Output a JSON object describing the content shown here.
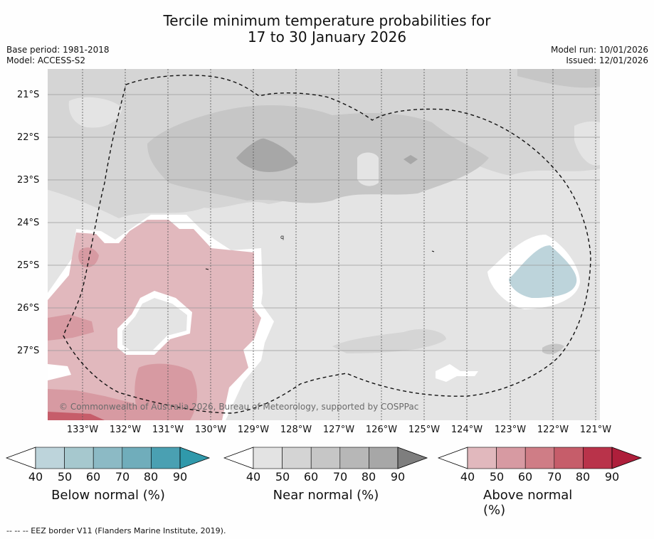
{
  "title": {
    "line1": "Tercile minimum temperature probabilities for",
    "line2": "17 to 30 January 2026"
  },
  "meta": {
    "base_period": "Base period: 1981-2018",
    "model": "Model: ACCESS-S2",
    "model_run": "Model run: 10/01/2026",
    "issued": "Issued: 12/01/2026"
  },
  "map": {
    "latitude_labels": [
      "21°S",
      "22°S",
      "23°S",
      "24°S",
      "25°S",
      "26°S",
      "27°S"
    ],
    "longitude_labels": [
      "133°W",
      "132°W",
      "131°W",
      "130°W",
      "129°W",
      "128°W",
      "127°W",
      "126°W",
      "125°W",
      "124°W",
      "123°W",
      "122°W",
      "121°W"
    ],
    "copyright": "© Commonwealth of Australia 2026, Bureau of Meteorology, supported by COSPPac",
    "small_label": "q"
  },
  "legend": {
    "ticks": [
      "40",
      "50",
      "60",
      "70",
      "80",
      "90"
    ],
    "below": {
      "label": "Below normal (%)",
      "colors": [
        "#ffffff",
        "#bdd4db",
        "#a6c8ce",
        "#8cbac5",
        "#70adbb",
        "#4aa0b2",
        "#3099ab"
      ]
    },
    "near": {
      "label": "Near normal (%)",
      "colors": [
        "#ffffff",
        "#e3e3e3",
        "#d4d4d4",
        "#c6c6c6",
        "#b7b7b7",
        "#a7a7a7",
        "#7e7e7e"
      ]
    },
    "above": {
      "label": "Above normal (%)",
      "colors": [
        "#ffffff",
        "#e1b8bd",
        "#d79aa2",
        "#cf7d86",
        "#c65d6a",
        "#b9334a",
        "#ae1f3b"
      ]
    }
  },
  "footnote": "--  --  -- EEZ border V11 (Flanders Marine Institute, 2019)."
}
